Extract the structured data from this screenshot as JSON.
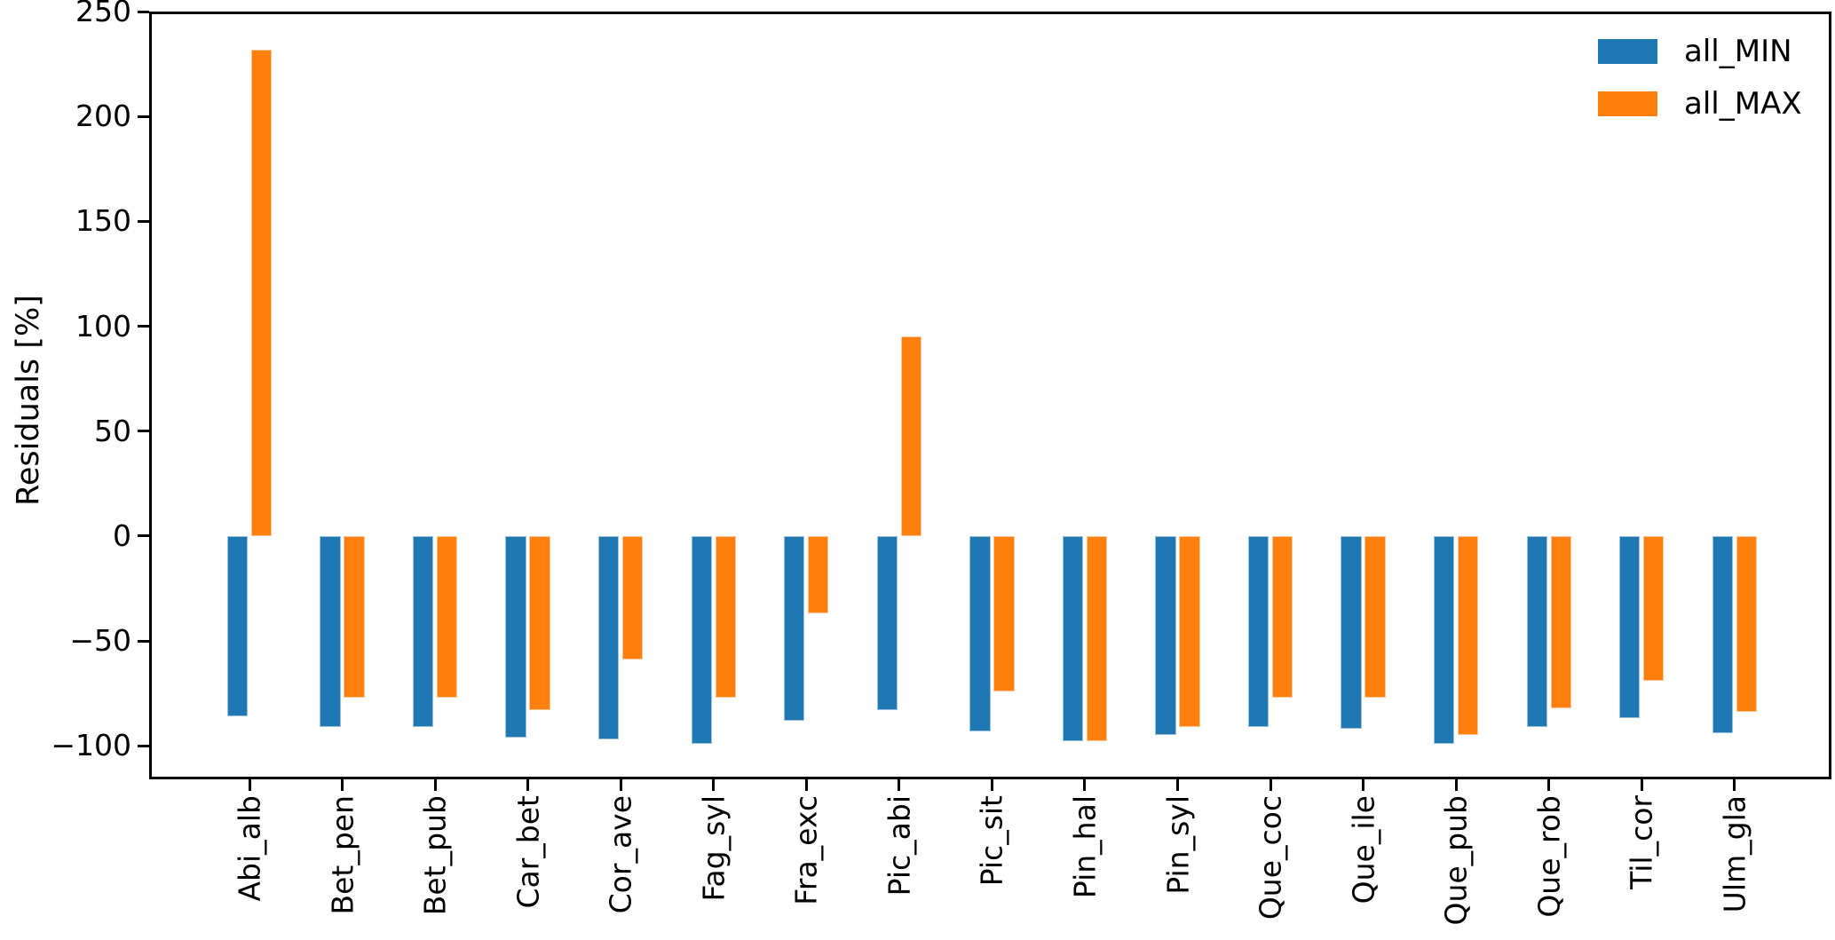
{
  "chart_data": {
    "type": "bar",
    "title": "",
    "xlabel": "",
    "ylabel": "Residuals [%]",
    "categories": [
      "Abi_alb",
      "Bet_pen",
      "Bet_pub",
      "Car_bet",
      "Cor_ave",
      "Fag_syl",
      "Fra_exc",
      "Pic_abi",
      "Pic_sit",
      "Pin_hal",
      "Pin_syl",
      "Que_coc",
      "Que_ile",
      "Que_pub",
      "Que_rob",
      "Til_cor",
      "Ulm_gla"
    ],
    "series": [
      {
        "name": "all_MIN",
        "color": "#1f77b4",
        "values": [
          -86,
          -91,
          -91,
          -96,
          -97,
          -99,
          -88,
          -83,
          -93,
          -98,
          -95,
          -91,
          -92,
          -99,
          -91,
          -87,
          -94
        ]
      },
      {
        "name": "all_MAX",
        "color": "#ff7f0e",
        "values": [
          232,
          -77,
          -77,
          -83,
          -59,
          -77,
          -37,
          95,
          -74,
          -98,
          -91,
          -77,
          -77,
          -95,
          -82,
          -69,
          -84
        ]
      }
    ],
    "ylim": [
      -116,
      250
    ],
    "yticks": [
      250,
      200,
      150,
      100,
      50,
      0,
      -50,
      -100
    ],
    "grid": false,
    "legend_position": "upper right",
    "axis_color": "#000000",
    "background_color": "#ffffff"
  }
}
